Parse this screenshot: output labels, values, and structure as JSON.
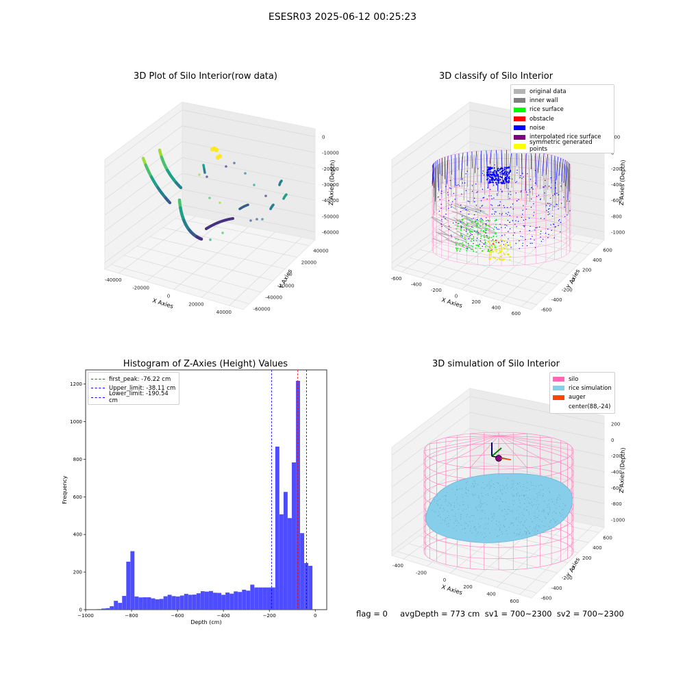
{
  "figure": {
    "suptitle": "ESESR03 2025-06-12 00:25:23",
    "footer": "flag = 0     avgDepth = 773 cm  sv1 = 700~2300  sv2 = 700~2300"
  },
  "chart_data": [
    {
      "type": "scatter",
      "title": "3D Plot of Silo Interior(row data)",
      "xlabel": "X Axies",
      "ylabel": "Y Axies",
      "zlabel": "Z Axies (Depth)",
      "x_ticks": [
        "-40000",
        "-20000",
        "0",
        "20000",
        "40000"
      ],
      "y_ticks": [
        "-60000",
        "-40000",
        "-20000",
        "0",
        "20000",
        "40000"
      ],
      "z_ticks": [
        "0",
        "-10000",
        "-20000",
        "-30000",
        "-40000",
        "-50000",
        "-60000"
      ],
      "colormap": "viridis",
      "grid": true
    },
    {
      "type": "scatter",
      "title": "3D classify of Silo Interior",
      "xlabel": "X Axies",
      "ylabel": "Y Axies",
      "zlabel": "Z Axies (Depth)",
      "x_ticks": [
        "-600",
        "-400",
        "-200",
        "0",
        "200",
        "400",
        "600"
      ],
      "y_ticks": [
        "-600",
        "-400",
        "-200",
        "0",
        "200",
        "400",
        "600"
      ],
      "z_ticks": [
        "200",
        "0",
        "-200",
        "-400",
        "-600",
        "-800",
        "-1000"
      ],
      "legend_position": "top-right",
      "legend": [
        {
          "label": "original data",
          "color": "#b3b3b3"
        },
        {
          "label": "inner wall",
          "color": "#808080"
        },
        {
          "label": "rice surface",
          "color": "#00ff00"
        },
        {
          "label": "obstacle",
          "color": "#ff0000"
        },
        {
          "label": "noise",
          "color": "#0000ff"
        },
        {
          "label": "interpolated rice surface",
          "color": "#800080"
        },
        {
          "label": "symmetric generated points",
          "color": "#ffff00"
        }
      ],
      "grid": true
    },
    {
      "type": "bar",
      "title": "Histogram of Z-Axies (Height) Values",
      "xlabel": "Depth (cm)",
      "ylabel": "Frequency",
      "xlim": [
        -1000,
        50
      ],
      "ylim": [
        0,
        1275
      ],
      "x_ticks": [
        -1000,
        -800,
        -600,
        -400,
        -200,
        0
      ],
      "y_ticks": [
        0,
        200,
        400,
        600,
        800,
        1000,
        1200
      ],
      "bar_color": "#4d4dff",
      "bins": [
        {
          "x0": -949,
          "x1": -931,
          "v": 3
        },
        {
          "x0": -931,
          "x1": -913,
          "v": 6
        },
        {
          "x0": -913,
          "x1": -895,
          "v": 8
        },
        {
          "x0": -895,
          "x1": -877,
          "v": 18
        },
        {
          "x0": -877,
          "x1": -859,
          "v": 47
        },
        {
          "x0": -859,
          "x1": -841,
          "v": 36
        },
        {
          "x0": -841,
          "x1": -823,
          "v": 73
        },
        {
          "x0": -823,
          "x1": -805,
          "v": 255
        },
        {
          "x0": -805,
          "x1": -787,
          "v": 311
        },
        {
          "x0": -787,
          "x1": -769,
          "v": 70
        },
        {
          "x0": -769,
          "x1": -751,
          "v": 65
        },
        {
          "x0": -751,
          "x1": -733,
          "v": 66
        },
        {
          "x0": -733,
          "x1": -715,
          "v": 66
        },
        {
          "x0": -715,
          "x1": -697,
          "v": 60
        },
        {
          "x0": -697,
          "x1": -679,
          "v": 55
        },
        {
          "x0": -679,
          "x1": -661,
          "v": 57
        },
        {
          "x0": -661,
          "x1": -643,
          "v": 71
        },
        {
          "x0": -643,
          "x1": -625,
          "v": 79
        },
        {
          "x0": -625,
          "x1": -607,
          "v": 72
        },
        {
          "x0": -607,
          "x1": -589,
          "v": 70
        },
        {
          "x0": -589,
          "x1": -571,
          "v": 75
        },
        {
          "x0": -571,
          "x1": -553,
          "v": 84
        },
        {
          "x0": -553,
          "x1": -535,
          "v": 79
        },
        {
          "x0": -535,
          "x1": -517,
          "v": 80
        },
        {
          "x0": -517,
          "x1": -499,
          "v": 87
        },
        {
          "x0": -499,
          "x1": -481,
          "v": 98
        },
        {
          "x0": -481,
          "x1": -463,
          "v": 96
        },
        {
          "x0": -463,
          "x1": -445,
          "v": 99
        },
        {
          "x0": -445,
          "x1": -427,
          "v": 90
        },
        {
          "x0": -427,
          "x1": -409,
          "v": 89
        },
        {
          "x0": -409,
          "x1": -391,
          "v": 79
        },
        {
          "x0": -391,
          "x1": -373,
          "v": 91
        },
        {
          "x0": -373,
          "x1": -355,
          "v": 85
        },
        {
          "x0": -355,
          "x1": -337,
          "v": 97
        },
        {
          "x0": -337,
          "x1": -319,
          "v": 94
        },
        {
          "x0": -319,
          "x1": -301,
          "v": 106
        },
        {
          "x0": -301,
          "x1": -283,
          "v": 101
        },
        {
          "x0": -283,
          "x1": -265,
          "v": 133
        },
        {
          "x0": -265,
          "x1": -247,
          "v": 118
        },
        {
          "x0": -247,
          "x1": -229,
          "v": 118
        },
        {
          "x0": -229,
          "x1": -211,
          "v": 118
        },
        {
          "x0": -211,
          "x1": -174,
          "v": 118
        },
        {
          "x0": -174,
          "x1": -156,
          "v": 867
        },
        {
          "x0": -156,
          "x1": -138,
          "v": 507
        },
        {
          "x0": -138,
          "x1": -120,
          "v": 626
        },
        {
          "x0": -120,
          "x1": -102,
          "v": 487
        },
        {
          "x0": -102,
          "x1": -84,
          "v": 783
        },
        {
          "x0": -84,
          "x1": -66,
          "v": 1217
        },
        {
          "x0": -66,
          "x1": -48,
          "v": 407
        },
        {
          "x0": -48,
          "x1": -30,
          "v": 248
        },
        {
          "x0": -30,
          "x1": -12,
          "v": 233
        }
      ],
      "vlines": [
        {
          "label": "first_peak: -76.22 cm",
          "x": -76.22,
          "color": "#ff0000"
        },
        {
          "label": "Upper_limit: -38.11 cm",
          "x": -38.11,
          "color": "#0000ff"
        },
        {
          "label": "Lower_limit: -190.54 cm",
          "x": -190.54,
          "color": "#0000ff"
        }
      ],
      "legend_position": "top-left"
    },
    {
      "type": "scatter",
      "title": "3D simulation of Silo Interior",
      "xlabel": "X Axies",
      "ylabel": "Y Axies",
      "zlabel": "Z Axies (Depth)",
      "x_ticks": [
        "-400",
        "-200",
        "0",
        "200",
        "400",
        "600"
      ],
      "y_ticks": [
        "-600",
        "-400",
        "-200",
        "0",
        "200",
        "400",
        "600"
      ],
      "z_ticks": [
        "200",
        "0",
        "-200",
        "-400",
        "-600",
        "-800",
        "-1000"
      ],
      "legend_position": "top-right",
      "legend": [
        {
          "label": "silo",
          "color": "#ff69b4"
        },
        {
          "label": "rice simulation",
          "color": "#87ceeb"
        },
        {
          "label": "auger",
          "color": "#ff4500"
        },
        {
          "label": "center(88,-24)",
          "color": ""
        }
      ],
      "grid": true
    }
  ]
}
